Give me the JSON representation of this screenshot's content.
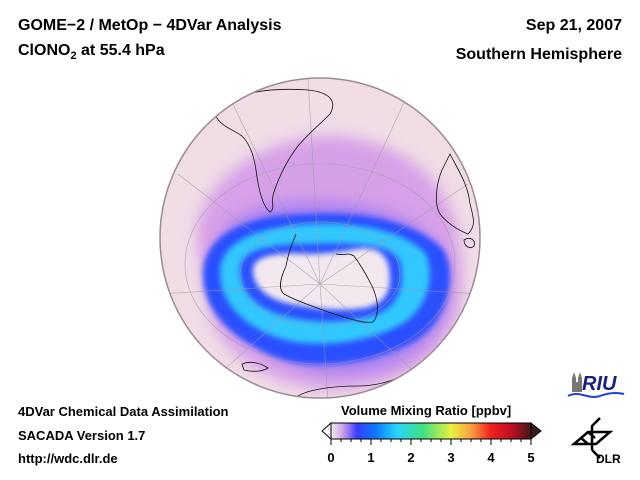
{
  "header": {
    "title_line1": "GOME−2 / MetOp − 4DVar Analysis",
    "species_main": "ClONO",
    "species_sub": "2",
    "species_rest": " at 55.4 hPa",
    "date": "Sep 21, 2007",
    "region": "Southern Hemisphere"
  },
  "footer": {
    "line1": "4DVar Chemical Data Assimilation",
    "line2": "SACADA Version 1.7",
    "line3": "http://wdc.dlr.de"
  },
  "colorbar": {
    "title": "Volume Mixing Ratio [ppbv]",
    "ticks": [
      "0",
      "1",
      "2",
      "3",
      "4",
      "5"
    ],
    "range": [
      0,
      5
    ],
    "colors": [
      "#f4ecec",
      "#c8a0e8",
      "#3a3cff",
      "#0a78ff",
      "#2ad4ff",
      "#40e080",
      "#e8f040",
      "#f8a040",
      "#f02020",
      "#f01030",
      "#401818"
    ]
  },
  "logos": {
    "riu": "RIU",
    "dlr": "DLR"
  },
  "map": {
    "projection": "orthographic-south-pole",
    "background_color": "#f2dfe8",
    "ring_color": "#1a4cff"
  }
}
